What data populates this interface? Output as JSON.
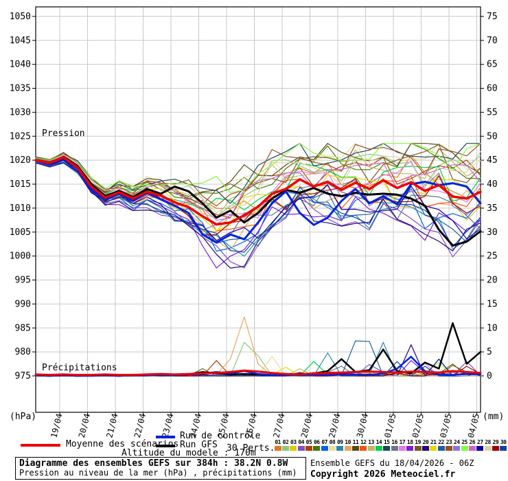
{
  "chart_data": {
    "type": "line",
    "title": "Diagramme des ensembles GEFS sur 384h : 38.2N 0.8W",
    "subtitle": "Pression au niveau de la mer (hPa) , précipitations (mm)",
    "time_step_hours": 12,
    "points_count": 33,
    "x_tick_labels": [
      "19/04",
      "20/04",
      "21/04",
      "22/04",
      "23/04",
      "24/04",
      "25/04",
      "26/04",
      "27/04",
      "28/04",
      "29/04",
      "30/04",
      "01/05",
      "02/05",
      "03/05",
      "04/05"
    ],
    "left_axis": {
      "label": "Pression",
      "unit": "(hPa)",
      "min": 975,
      "max": 1050,
      "tick_interval": 5,
      "ticks": [
        975,
        980,
        985,
        990,
        995,
        1000,
        1005,
        1010,
        1015,
        1020,
        1025,
        1030,
        1035,
        1040,
        1045,
        1050
      ]
    },
    "right_axis": {
      "label": "Précipitations",
      "unit": "(mm)",
      "min": 0,
      "max": 75,
      "tick_interval": 5,
      "ticks": [
        0,
        5,
        10,
        15,
        20,
        25,
        30,
        35,
        40,
        45,
        50,
        55,
        60,
        65,
        70,
        75
      ]
    },
    "series_pressure": {
      "mean": [
        1020.0,
        1019.4,
        1020.6,
        1018.5,
        1014.5,
        1012.2,
        1013.3,
        1012.0,
        1013.4,
        1012.6,
        1011.2,
        1010.2,
        1008.3,
        1006.6,
        1007.0,
        1008.5,
        1010.3,
        1013.0,
        1014.0,
        1016.0,
        1014.5,
        1015.5,
        1013.8,
        1015.3,
        1014.0,
        1015.8,
        1014.2,
        1015.4,
        1013.6,
        1014.8,
        1012.4,
        1012.0,
        1013.4
      ],
      "control": [
        1020.0,
        1019.2,
        1020.4,
        1018.2,
        1014.0,
        1011.8,
        1013.0,
        1011.5,
        1013.2,
        1011.8,
        1010.5,
        1009.0,
        1004.5,
        1002.8,
        1004.5,
        1003.5,
        1007.0,
        1011.0,
        1013.5,
        1009.0,
        1006.5,
        1008.0,
        1011.5,
        1014.0,
        1011.0,
        1012.5,
        1010.8,
        1015.0,
        1015.5,
        1014.8,
        1015.2,
        1014.5,
        1011.0
      ],
      "gfs": [
        1020.0,
        1019.5,
        1020.7,
        1018.8,
        1015.0,
        1012.5,
        1013.6,
        1012.3,
        1014.0,
        1013.0,
        1014.5,
        1013.5,
        1011.0,
        1008.0,
        1009.5,
        1007.0,
        1009.0,
        1012.0,
        1013.8,
        1013.2,
        1014.2,
        1013.0,
        1012.5,
        1013.2,
        1012.8,
        1013.0,
        1012.8,
        1012.0,
        1010.5,
        1005.5,
        1002.2,
        1003.0,
        1005.2
      ]
    },
    "series_precipitation": {
      "mean": [
        0.3,
        0.2,
        0.3,
        0.2,
        0.2,
        0.3,
        0.2,
        0.2,
        0.3,
        0.4,
        0.3,
        0.4,
        0.5,
        0.6,
        0.8,
        1.1,
        0.9,
        0.6,
        0.4,
        0.3,
        0.5,
        0.6,
        0.7,
        0.8,
        0.9,
        0.8,
        0.7,
        0.9,
        0.8,
        0.7,
        1.0,
        0.8,
        0.6
      ],
      "control": [
        0.1,
        0.0,
        0.1,
        0.0,
        0.0,
        0.1,
        0.0,
        0.1,
        0.1,
        0.2,
        0.1,
        0.3,
        0.5,
        0.8,
        0.5,
        1.0,
        0.4,
        0.2,
        0.1,
        0.2,
        0.3,
        0.2,
        0.4,
        0.3,
        0.2,
        0.5,
        1.5,
        4.0,
        1.0,
        0.3,
        0.2,
        0.4,
        0.3
      ],
      "gfs": [
        0.1,
        0.0,
        0.1,
        0.0,
        0.1,
        0.1,
        0.0,
        0.1,
        0.2,
        0.1,
        0.2,
        0.3,
        0.8,
        0.5,
        0.3,
        0.4,
        0.3,
        0.2,
        0.3,
        0.4,
        0.5,
        1.0,
        3.5,
        0.8,
        1.2,
        5.5,
        1.0,
        0.5,
        2.8,
        1.5,
        11.0,
        2.5,
        5.0
      ]
    },
    "ensemble": {
      "count": 30,
      "labels": [
        "01",
        "02",
        "03",
        "04",
        "05",
        "06",
        "07",
        "08",
        "09",
        "10",
        "11",
        "12",
        "13",
        "14",
        "15",
        "16",
        "17",
        "18",
        "19",
        "20",
        "21",
        "22",
        "23",
        "24",
        "25",
        "26",
        "27",
        "28",
        "29",
        "30"
      ],
      "colors": [
        "#e07820",
        "#8cc87c",
        "#e3c800",
        "#8050c8",
        "#b04000",
        "#4a7800",
        "#0064e8",
        "#e8dca0",
        "#2888b0",
        "#e8a860",
        "#584818",
        "#f85008",
        "#c4b468",
        "#00d048",
        "#1c4858",
        "#687888",
        "#e878e8",
        "#7820d8",
        "#785820",
        "#200880",
        "#e8d800",
        "#2060a0",
        "#985020",
        "#8878d8",
        "#88f840",
        "#c868c8",
        "#1000a0",
        "#e0d0a8",
        "#a00000",
        "#1040b0"
      ],
      "offsets": [
        0.25,
        0.6,
        -0.2,
        -0.95,
        0.45,
        0.7,
        -0.5,
        0.8,
        -0.75,
        -0.3,
        0.9,
        -0.1,
        0.5,
        0.3,
        0.95,
        -0.4,
        0.15,
        -0.85,
        0.65,
        -1.0,
        0.05,
        -0.65,
        0.85,
        -0.15,
        1.0,
        0.4,
        -0.55,
        0.55,
        -0.25,
        -0.7
      ],
      "spread_halfwidth": [
        0.5,
        0.7,
        0.9,
        1.1,
        1.4,
        1.7,
        2.0,
        2.3,
        2.6,
        3.0,
        3.6,
        4.5,
        5.5,
        7.5,
        8.0,
        8.0,
        7.5,
        7.0,
        6.5,
        6.3,
        6.5,
        6.5,
        6.8,
        7.0,
        7.2,
        7.5,
        7.8,
        8.0,
        8.5,
        8.8,
        9.0,
        9.2,
        9.0
      ],
      "precip_spikes": [
        {
          "member": 10,
          "index": 14,
          "value": 3.5
        },
        {
          "member": 10,
          "index": 15,
          "value": 12.3
        },
        {
          "member": 10,
          "index": 16,
          "value": 2.5
        },
        {
          "member": 2,
          "index": 15,
          "value": 7.0
        },
        {
          "member": 2,
          "index": 16,
          "value": 4.2
        },
        {
          "member": 5,
          "index": 13,
          "value": 3.2
        },
        {
          "member": 8,
          "index": 17,
          "value": 4.0
        },
        {
          "member": 22,
          "index": 23,
          "value": 7.3
        },
        {
          "member": 22,
          "index": 24,
          "value": 7.2
        },
        {
          "member": 9,
          "index": 21,
          "value": 4.8
        },
        {
          "member": 9,
          "index": 25,
          "value": 7.0
        },
        {
          "member": 27,
          "index": 27,
          "value": 6.5
        },
        {
          "member": 27,
          "index": 29,
          "value": 3.5
        },
        {
          "member": 30,
          "index": 26,
          "value": 3.0
        },
        {
          "member": 30,
          "index": 28,
          "value": 2.0
        },
        {
          "member": 14,
          "index": 20,
          "value": 3.0
        },
        {
          "member": 17,
          "index": 28,
          "value": 2.6
        },
        {
          "member": 25,
          "index": 29,
          "value": 2.8
        },
        {
          "member": 23,
          "index": 30,
          "value": 2.2
        },
        {
          "member": 19,
          "index": 12,
          "value": 1.5
        },
        {
          "member": 21,
          "index": 18,
          "value": 1.8
        },
        {
          "member": 4,
          "index": 24,
          "value": 2.4
        },
        {
          "member": 4,
          "index": 31,
          "value": 3.0
        },
        {
          "member": 18,
          "index": 27,
          "value": 3.2
        },
        {
          "member": 16,
          "index": 22,
          "value": 2.0
        },
        {
          "member": 29,
          "index": 31,
          "value": 2.0
        },
        {
          "member": 13,
          "index": 19,
          "value": 1.5
        },
        {
          "member": 6,
          "index": 30,
          "value": 2.5
        }
      ]
    },
    "grid": true,
    "legend_position": "bottom"
  },
  "legend": {
    "mean_label": "Moyenne des scénarios",
    "control_label": "Run de contrôle",
    "gfs_label": "Run GFS",
    "perts_label": "30 Perts.",
    "mean_color": "#ee0000",
    "control_color": "#0022dd",
    "gfs_color": "#000000"
  },
  "footer": {
    "altitude": "Altitude du modele : 170m",
    "box_title": "Diagramme des ensembles GEFS sur 384h : 38.2N 0.8W",
    "box_subtitle": "Pression au niveau de la mer (hPa) , précipitations (mm)",
    "run_info": "Ensemble GEFS du 18/04/2026 - 06Z",
    "copyright": "Copyright 2026 Meteociel.fr"
  }
}
